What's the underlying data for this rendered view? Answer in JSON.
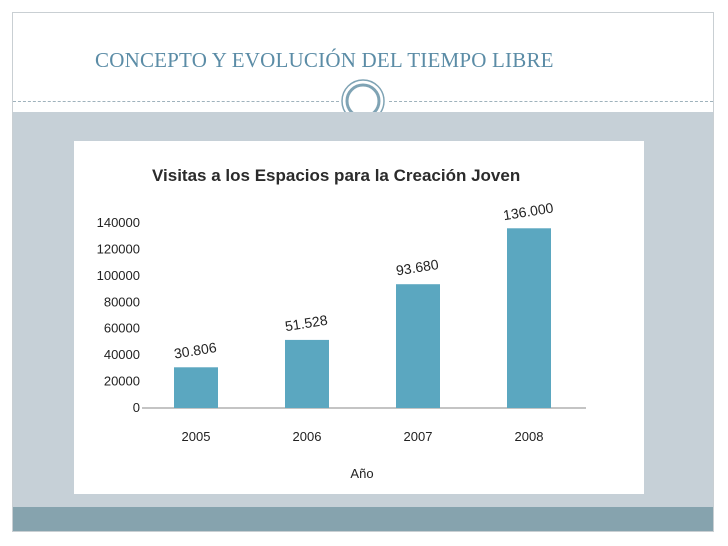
{
  "slide": {
    "title": "CONCEPTO Y EVOLUCIÓN DEL TIEMPO LIBRE",
    "colors": {
      "title": "#5b8ca6",
      "content_band": "#c6d0d7",
      "footer_band": "#86a3ae",
      "ornament": "#7fa3b4"
    },
    "ornament_icon": "ring-ornament-icon"
  },
  "chart_data": {
    "type": "bar",
    "title": "Visitas a los Espacios para la Creación Joven",
    "xlabel": "Año",
    "ylabel": "",
    "categories": [
      "2005",
      "2006",
      "2007",
      "2008"
    ],
    "values": [
      30806,
      51528,
      93680,
      136000
    ],
    "data_labels": [
      "30.806",
      "51.528",
      "93.680",
      "136.000"
    ],
    "ylim": [
      0,
      140000
    ],
    "yticks": [
      0,
      20000,
      40000,
      60000,
      80000,
      100000,
      120000,
      140000
    ],
    "ytick_labels": [
      "0",
      "20000",
      "40000",
      "60000",
      "80000",
      "100000",
      "120000",
      "140000"
    ],
    "grid": false,
    "legend": "none",
    "bar_color": "#5ba7c0"
  }
}
